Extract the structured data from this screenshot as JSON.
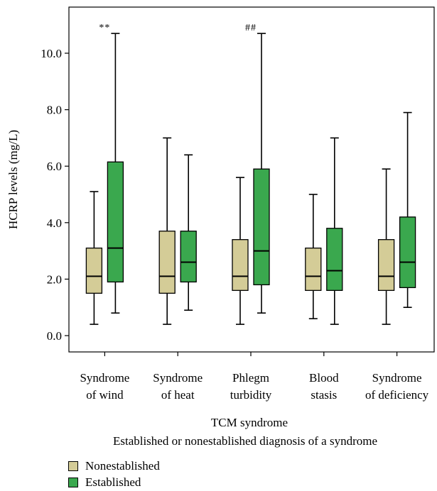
{
  "chart_data": {
    "type": "boxplot",
    "ylabel": "HCRP levels (mg/L)",
    "xlabel": "TCM syndrome",
    "legend_title": "Established or nonestablished diagnosis of a syndrome",
    "legend_position": "bottom-left",
    "ylim": [
      -0.4,
      11.8
    ],
    "yticks": [
      "0.0",
      "2.0",
      "4.0",
      "6.0",
      "8.0",
      "10.0"
    ],
    "grid": false,
    "categories": [
      {
        "line1": "Syndrome",
        "line2": "of wind",
        "annotation": "**"
      },
      {
        "line1": "Syndrome",
        "line2": "of heat",
        "annotation": ""
      },
      {
        "line1": "Phlegm",
        "line2": "turbidity",
        "annotation": "##"
      },
      {
        "line1": "Blood",
        "line2": "stasis",
        "annotation": ""
      },
      {
        "line1": "Syndrome",
        "line2": "of deficiency",
        "annotation": ""
      }
    ],
    "series": [
      {
        "name": "Nonestablished",
        "color": "#d4cc97",
        "boxes": [
          {
            "min": 0.4,
            "q1": 1.5,
            "median": 2.1,
            "q3": 3.1,
            "max": 5.1
          },
          {
            "min": 0.4,
            "q1": 1.5,
            "median": 2.1,
            "q3": 3.7,
            "max": 7.0
          },
          {
            "min": 0.4,
            "q1": 1.6,
            "median": 2.1,
            "q3": 3.4,
            "max": 5.6
          },
          {
            "min": 0.6,
            "q1": 1.6,
            "median": 2.1,
            "q3": 3.1,
            "max": 5.0
          },
          {
            "min": 0.4,
            "q1": 1.6,
            "median": 2.1,
            "q3": 3.4,
            "max": 5.9
          }
        ]
      },
      {
        "name": "Established",
        "color": "#3aa84e",
        "boxes": [
          {
            "min": 0.8,
            "q1": 1.9,
            "median": 3.1,
            "q3": 6.15,
            "max": 10.7
          },
          {
            "min": 0.9,
            "q1": 1.9,
            "median": 2.6,
            "q3": 3.7,
            "max": 6.4
          },
          {
            "min": 0.8,
            "q1": 1.8,
            "median": 3.0,
            "q3": 5.9,
            "max": 10.7
          },
          {
            "min": 0.4,
            "q1": 1.6,
            "median": 2.3,
            "q3": 3.8,
            "max": 7.0
          },
          {
            "min": 1.0,
            "q1": 1.7,
            "median": 2.6,
            "q3": 4.2,
            "max": 7.9
          }
        ]
      }
    ]
  }
}
